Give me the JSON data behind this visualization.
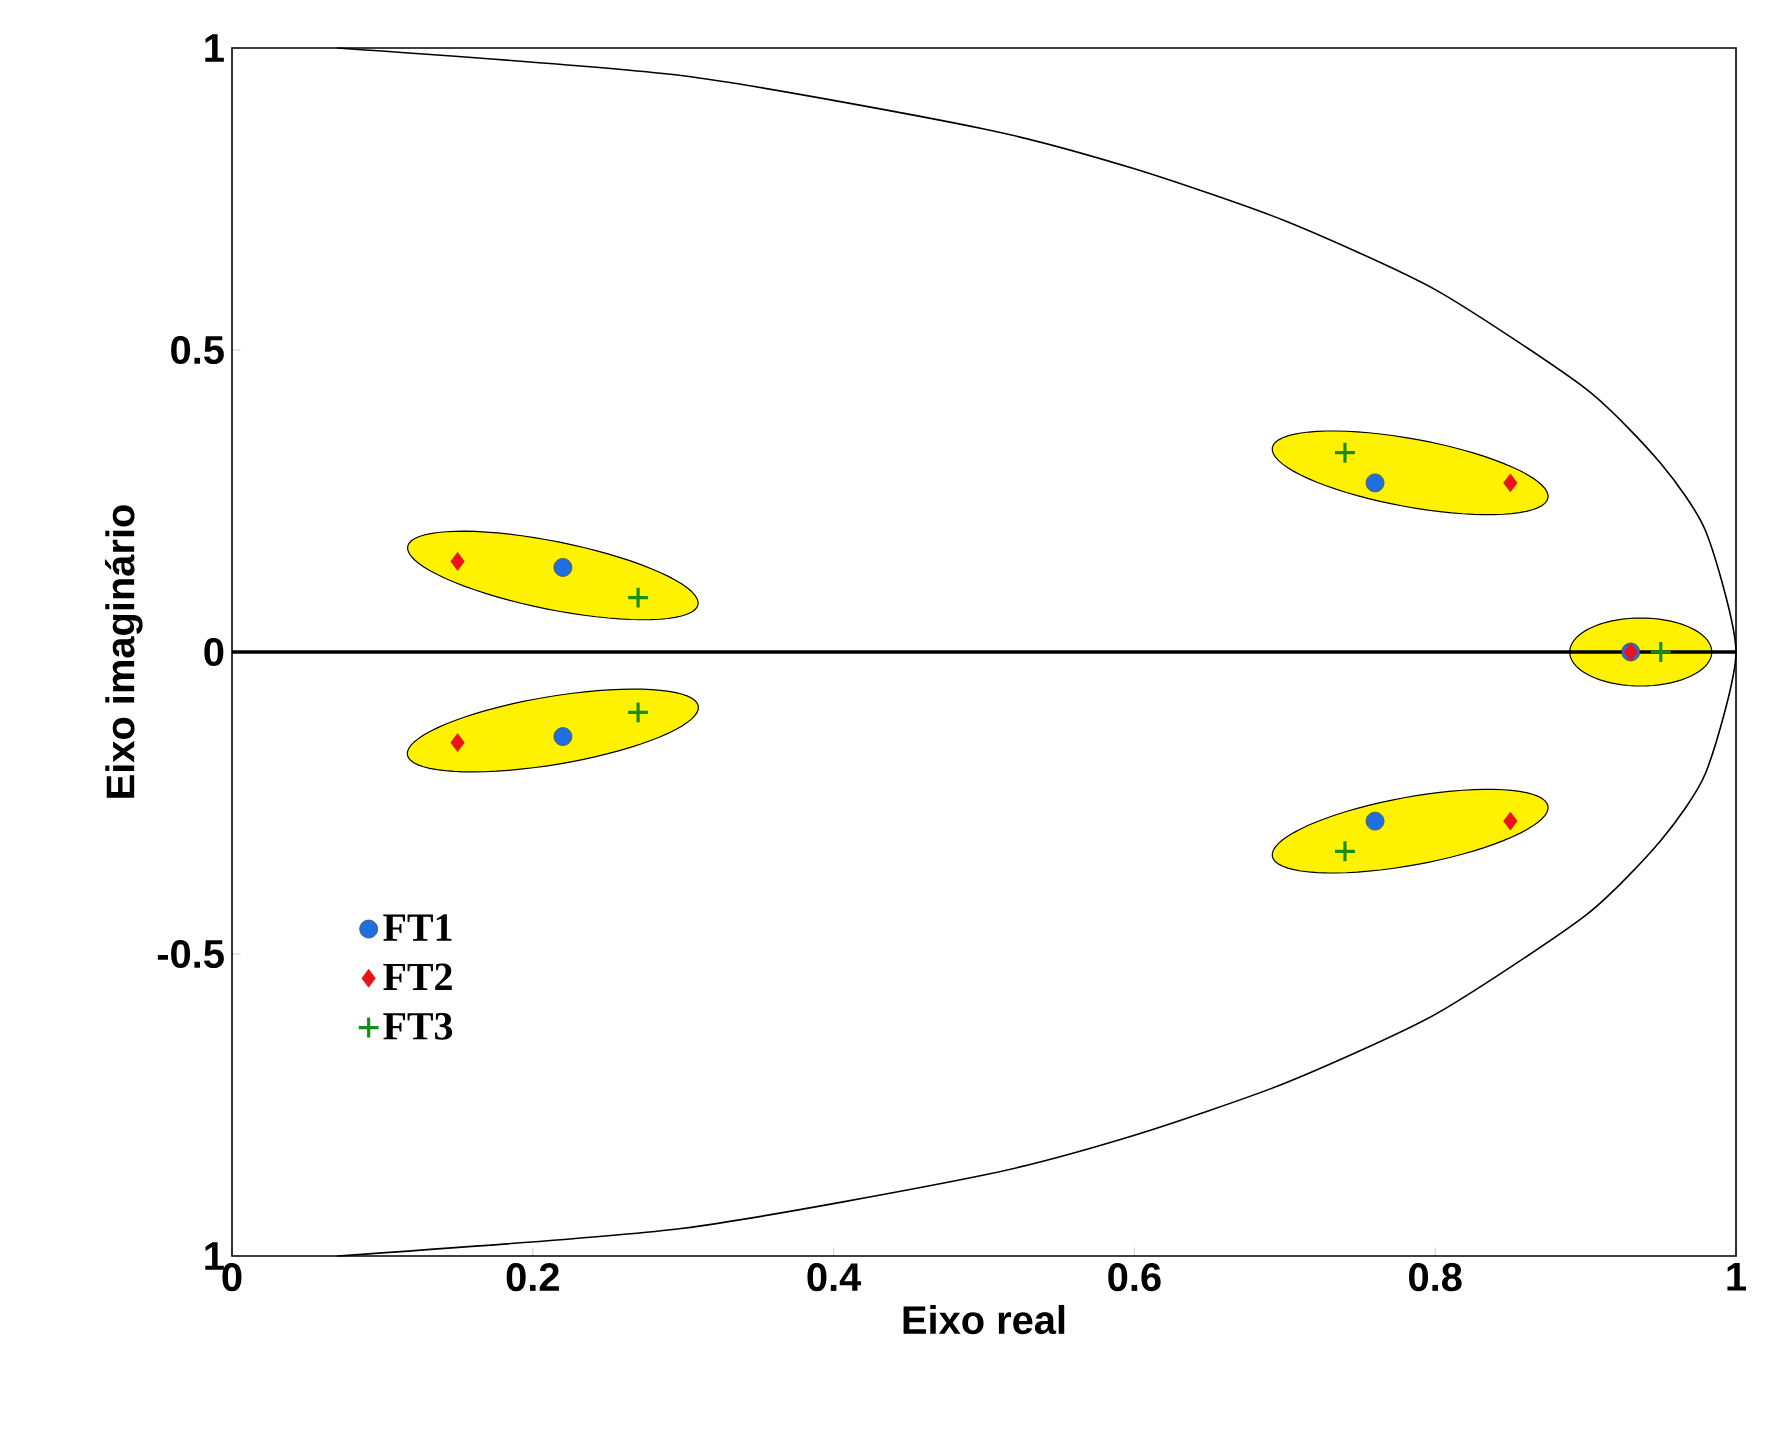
{
  "chart_data": {
    "type": "scatter",
    "xlabel": "Eixo real",
    "ylabel": "Eixo imaginário",
    "xlim": [
      0,
      1
    ],
    "ylim": [
      -1,
      1
    ],
    "xticks": [
      0,
      0.2,
      0.4,
      0.6,
      0.8,
      1
    ],
    "yticks": [
      {
        "value": -1,
        "label": "1"
      },
      -0.5,
      0,
      0.5,
      1
    ],
    "legend": "bottom left",
    "ref_lines": [
      {
        "axis": "y",
        "value": 0,
        "color": "#000000"
      }
    ],
    "series": [
      {
        "name": "FT1",
        "color": "#1f6fe0",
        "marker": "circle",
        "x": [
          0.22,
          0.22,
          0.76,
          0.76,
          0.93
        ],
        "values": [
          0.14,
          -0.14,
          0.28,
          -0.28,
          0
        ]
      },
      {
        "name": "FT2",
        "color": "#e8141c",
        "marker": "diamond",
        "x": [
          0.15,
          0.15,
          0.85,
          0.85,
          0.93
        ],
        "values": [
          0.15,
          -0.15,
          0.28,
          -0.28,
          0
        ]
      },
      {
        "name": "FT3",
        "color": "#1a8c1a",
        "marker": "cross",
        "x": [
          0.27,
          0.27,
          0.74,
          0.74,
          0.95
        ],
        "values": [
          0.09,
          -0.1,
          0.33,
          -0.33,
          0
        ]
      },
      {
        "type": "line",
        "color": "#000000",
        "marker": "none",
        "x": [
          0.07,
          0.3,
          0.5,
          0.6,
          0.7,
          0.8,
          0.9,
          0.95,
          0.98,
          1,
          0.98,
          0.95,
          0.9,
          0.8,
          0.7,
          0.6,
          0.5,
          0.3,
          0.07
        ],
        "values": [
          1,
          0.954,
          0.866,
          0.8,
          0.714,
          0.6,
          0.436,
          0.312,
          0.199,
          0,
          -0.199,
          -0.312,
          -0.436,
          -0.6,
          -0.714,
          -0.8,
          -0.866,
          -0.954,
          -1
        ]
      }
    ]
  }
}
